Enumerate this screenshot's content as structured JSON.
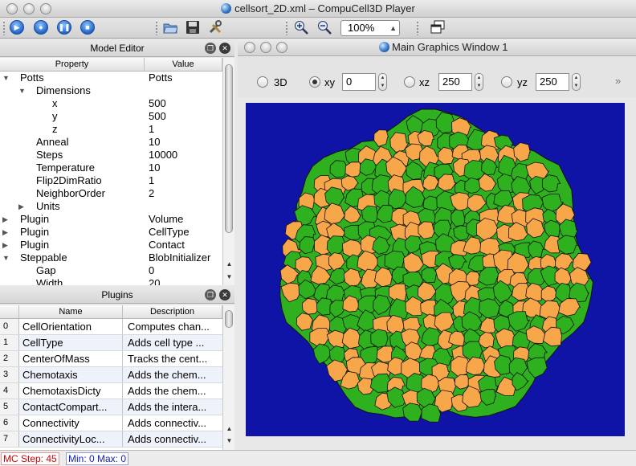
{
  "window": {
    "title": "cellsort_2D.xml – CompuCell3D Player"
  },
  "toolbar": {
    "zoom": "100%"
  },
  "model_editor": {
    "title": "Model Editor",
    "columns": [
      "Property",
      "Value"
    ],
    "rows": [
      {
        "name": "Potts",
        "value": "Potts",
        "indent": 0,
        "expander": "open"
      },
      {
        "name": "Dimensions",
        "value": "",
        "indent": 1,
        "expander": "open"
      },
      {
        "name": "x",
        "value": "500",
        "indent": 3,
        "expander": ""
      },
      {
        "name": "y",
        "value": "500",
        "indent": 3,
        "expander": ""
      },
      {
        "name": "z",
        "value": "1",
        "indent": 3,
        "expander": ""
      },
      {
        "name": "Anneal",
        "value": "10",
        "indent": 2,
        "expander": ""
      },
      {
        "name": "Steps",
        "value": "10000",
        "indent": 2,
        "expander": ""
      },
      {
        "name": "Temperature",
        "value": "10",
        "indent": 2,
        "expander": ""
      },
      {
        "name": "Flip2DimRatio",
        "value": "1",
        "indent": 2,
        "expander": ""
      },
      {
        "name": "NeighborOrder",
        "value": "2",
        "indent": 2,
        "expander": ""
      },
      {
        "name": "Units",
        "value": "",
        "indent": 1,
        "expander": "closed"
      },
      {
        "name": "Plugin",
        "value": "Volume",
        "indent": 0,
        "expander": "closed"
      },
      {
        "name": "Plugin",
        "value": "CellType",
        "indent": 0,
        "expander": "closed"
      },
      {
        "name": "Plugin",
        "value": "Contact",
        "indent": 0,
        "expander": "closed"
      },
      {
        "name": "Steppable",
        "value": "BlobInitializer",
        "indent": 0,
        "expander": "open"
      },
      {
        "name": "Gap",
        "value": "0",
        "indent": 2,
        "expander": ""
      },
      {
        "name": "Width",
        "value": "20",
        "indent": 2,
        "expander": ""
      }
    ]
  },
  "plugins": {
    "title": "Plugins",
    "columns": [
      "Name",
      "Description"
    ],
    "rows": [
      {
        "index": "0",
        "name": "CellOrientation",
        "description": "Computes chan..."
      },
      {
        "index": "1",
        "name": "CellType",
        "description": "Adds cell type ..."
      },
      {
        "index": "2",
        "name": "CenterOfMass",
        "description": "Tracks the cent..."
      },
      {
        "index": "3",
        "name": "Chemotaxis",
        "description": "Adds the chem..."
      },
      {
        "index": "4",
        "name": "ChemotaxisDicty",
        "description": "Adds the chem..."
      },
      {
        "index": "5",
        "name": "ContactCompart...",
        "description": "Adds the intera..."
      },
      {
        "index": "6",
        "name": "Connectivity",
        "description": "Adds connectiv..."
      },
      {
        "index": "7",
        "name": "ConnectivityLoc...",
        "description": "Adds connectiv..."
      }
    ]
  },
  "graphics": {
    "title": "Main Graphics Window 1",
    "views": [
      {
        "label": "3D",
        "selected": false,
        "value": null
      },
      {
        "label": "xy",
        "selected": true,
        "value": "0"
      },
      {
        "label": "xz",
        "selected": false,
        "value": "250"
      },
      {
        "label": "yz",
        "selected": false,
        "value": "250"
      }
    ],
    "more": "»",
    "colors": {
      "medium": "#0f13a6",
      "cell_type_1": "#2fb01e",
      "cell_type_2": "#f7a64a",
      "border": "#111111"
    }
  },
  "status": {
    "mc_step": "MC Step: 45",
    "min_max": "Min: 0 Max: 0"
  }
}
